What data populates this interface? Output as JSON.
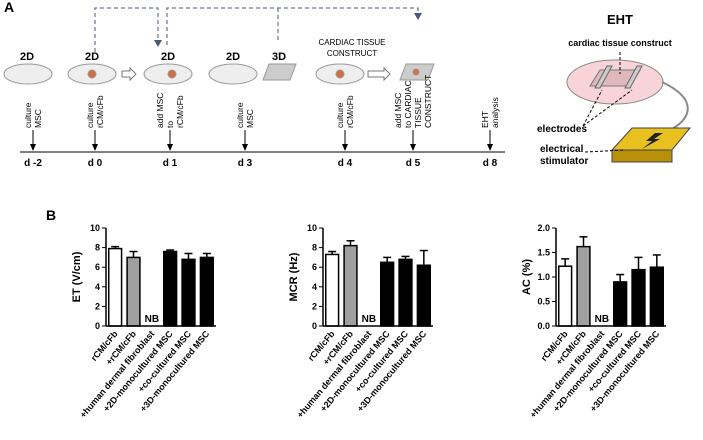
{
  "panel_a": {
    "label": "A",
    "stages": [
      "2D",
      "2D",
      "2D",
      "2D",
      "3D"
    ],
    "construct_label": [
      "CARDIAC TISSUE",
      "CONSTRUCT"
    ],
    "steps": [
      [
        "culture",
        "MSC"
      ],
      [
        "culture",
        "rCM/cFb"
      ],
      [
        "add MSC",
        "to",
        "rCM/cFb"
      ],
      [
        "culture",
        "MSC"
      ],
      [
        "culture",
        "rCM/cFb"
      ],
      [
        "add MSC",
        "to CARDIAC",
        "TISSUE",
        "CONSTRUCT"
      ],
      [
        "EHT",
        "analysis"
      ]
    ],
    "days": [
      "d -2",
      "d 0",
      "d 1",
      "d 3",
      "d 4",
      "d 5",
      "d 8"
    ],
    "eht": {
      "title": "EHT",
      "construct": "cardiac tissue construct",
      "electrodes": "electrodes",
      "stimulator": [
        "electrical",
        "stimulator"
      ]
    }
  },
  "panel_b": {
    "label": "B"
  },
  "chart_data": [
    {
      "type": "bar",
      "ylabel": "ET (V/cm)",
      "annotation": "NB",
      "categories": [
        "rCM/cFb",
        "+rCM/cFb",
        "+human dermal fibroblast",
        "+2D-monocultured MSC",
        "+co-cultured MSC",
        "+3D-monocultured MSC"
      ],
      "values": [
        7.9,
        7.0,
        null,
        7.6,
        6.8,
        7.0
      ],
      "errors": [
        0.2,
        0.6,
        null,
        0.15,
        0.6,
        0.4
      ],
      "colors": [
        "#ffffff",
        "#a0a0a0",
        "#000000",
        "#000000",
        "#000000",
        "#000000"
      ],
      "ylim": [
        0,
        10
      ],
      "yticks": [
        0,
        2,
        4,
        6,
        8,
        10
      ]
    },
    {
      "type": "bar",
      "ylabel": "MCR (Hz)",
      "annotation": "NB",
      "categories": [
        "rCM/cFb",
        "+rCM/cFb",
        "+human dermal fibroblast",
        "+2D-monocultured MSC",
        "+co-cultured MSC",
        "+3D-monocultured MSC"
      ],
      "values": [
        7.3,
        8.2,
        null,
        6.5,
        6.8,
        6.2
      ],
      "errors": [
        0.3,
        0.5,
        null,
        0.5,
        0.3,
        1.5
      ],
      "colors": [
        "#ffffff",
        "#a0a0a0",
        "#000000",
        "#000000",
        "#000000",
        "#000000"
      ],
      "ylim": [
        0,
        10
      ],
      "yticks": [
        0,
        2,
        4,
        6,
        8,
        10
      ]
    },
    {
      "type": "bar",
      "ylabel": "AC (%)",
      "annotation": "NB",
      "categories": [
        "rCM/cFb",
        "+rCM/cFb",
        "+human dermal fibroblast",
        "+2D-monocultured MSC",
        "+co-cultured MSC",
        "+3D-monocultured MSC"
      ],
      "values": [
        1.22,
        1.62,
        null,
        0.9,
        1.15,
        1.2
      ],
      "errors": [
        0.15,
        0.2,
        null,
        0.15,
        0.25,
        0.25
      ],
      "colors": [
        "#ffffff",
        "#a0a0a0",
        "#000000",
        "#000000",
        "#000000",
        "#000000"
      ],
      "ylim": [
        0,
        2
      ],
      "yticks": [
        {
          "value": 0,
          "label": "0.0"
        },
        {
          "value": 0.5,
          "label": "0.5"
        },
        {
          "value": 1,
          "label": "1.0"
        },
        {
          "value": 1.5,
          "label": "1.5"
        },
        {
          "value": 2,
          "label": "2.0"
        }
      ]
    }
  ]
}
